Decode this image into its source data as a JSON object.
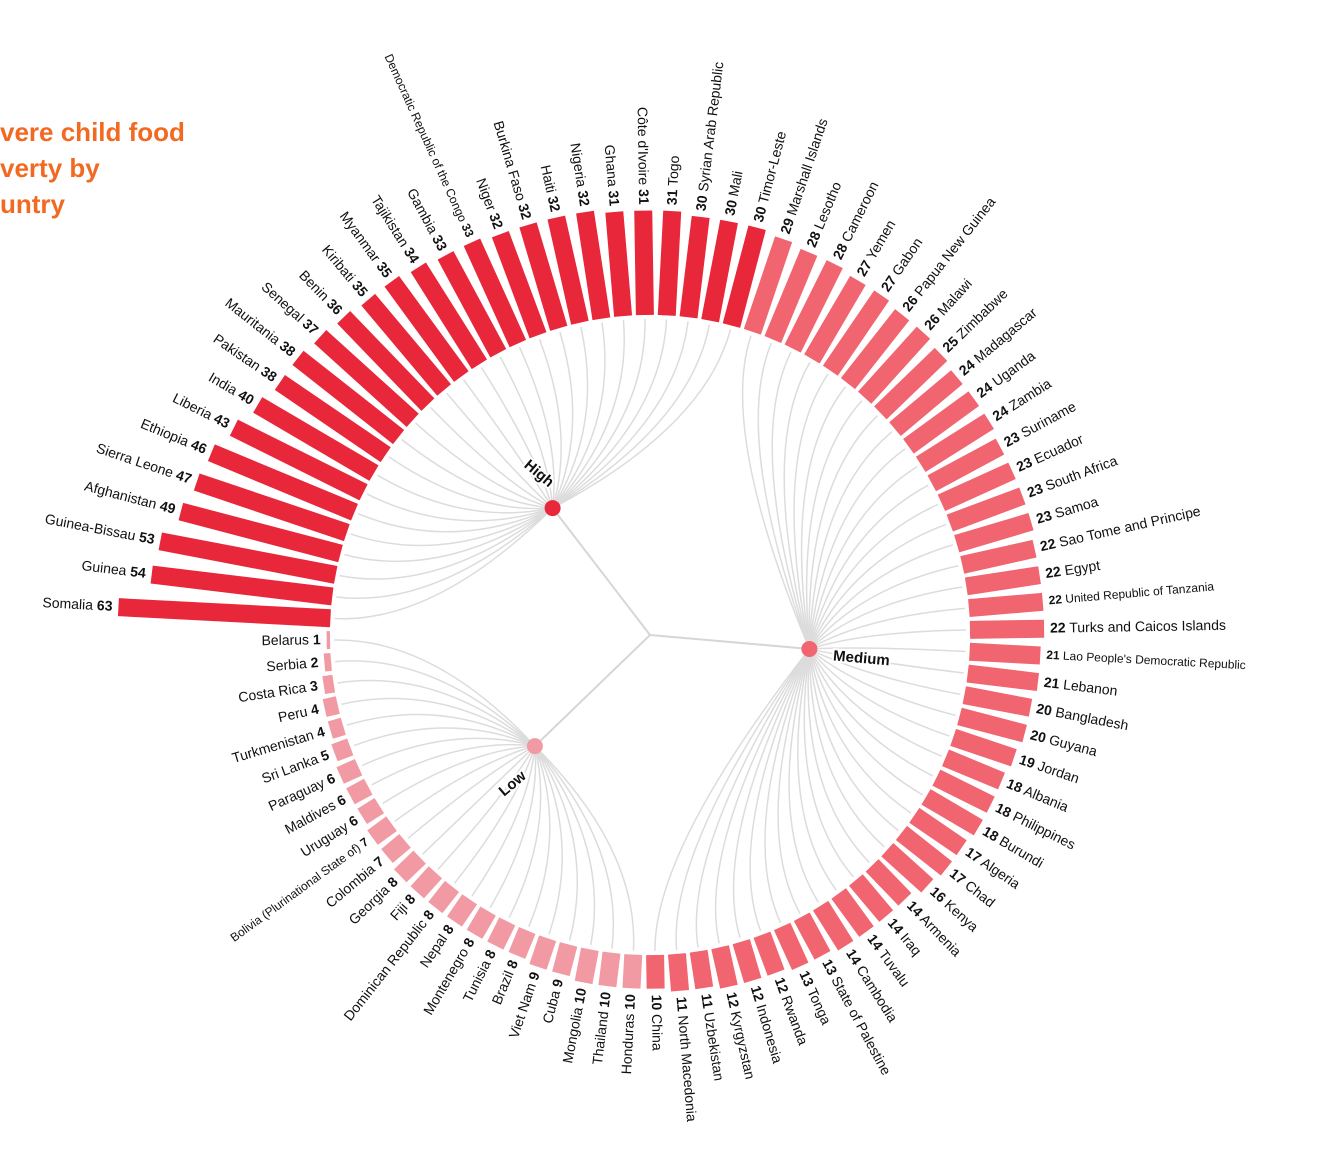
{
  "chart_data": {
    "type": "radial_bar",
    "title": [
      "vere child food",
      "verty by",
      "untry"
    ],
    "series": [
      {
        "name": "High",
        "color": "#e8273a",
        "categories": [
          "Somalia",
          "Guinea",
          "Guinea-Bissau",
          "Afghanistan",
          "Sierra Leone",
          "Ethiopia",
          "Liberia",
          "India",
          "Pakistan",
          "Mauritania",
          "Senegal",
          "Benin",
          "Kiribati",
          "Myanmar",
          "Tajikistan",
          "Gambia",
          "Democratic Republic of the Congo",
          "Niger",
          "Burkina Faso",
          "Haiti",
          "Nigeria",
          "Ghana",
          "Côte d'Ivoire",
          "Togo",
          "Syrian Arab Republic",
          "Mali",
          "Timor-Leste"
        ],
        "values": [
          63,
          54,
          53,
          49,
          47,
          46,
          43,
          40,
          38,
          38,
          37,
          36,
          35,
          35,
          34,
          33,
          33,
          32,
          32,
          32,
          32,
          31,
          31,
          31,
          30,
          30,
          30
        ]
      },
      {
        "name": "Medium",
        "color": "#f0656f",
        "categories": [
          "Marshall Islands",
          "Lesotho",
          "Cameroon",
          "Yemen",
          "Gabon",
          "Papua New Guinea",
          "Malawi",
          "Zimbabwe",
          "Madagascar",
          "Uganda",
          "Zambia",
          "Suriname",
          "Ecuador",
          "South Africa",
          "Samoa",
          "Sao Tome and Principe",
          "Egypt",
          "United Republic of Tanzania",
          "Turks and Caicos Islands",
          "Lao People's Democratic Republic",
          "Lebanon",
          "Bangladesh",
          "Guyana",
          "Jordan",
          "Albania",
          "Philippines",
          "Burundi",
          "Algeria",
          "Chad",
          "Kenya",
          "Armenia",
          "Iraq",
          "Tuvalu",
          "Cambodia",
          "State of Palestine",
          "Tonga",
          "Rwanda",
          "Indonesia",
          "Kyrgyzstan",
          "Uzbekistan",
          "North Macedonia",
          "China"
        ],
        "values": [
          29,
          28,
          28,
          27,
          27,
          26,
          26,
          25,
          24,
          24,
          24,
          23,
          23,
          23,
          23,
          22,
          22,
          22,
          22,
          21,
          21,
          20,
          20,
          19,
          18,
          18,
          18,
          17,
          17,
          16,
          14,
          14,
          14,
          14,
          13,
          13,
          12,
          12,
          12,
          11,
          11,
          10
        ]
      },
      {
        "name": "Low",
        "color": "#f19aa3",
        "categories": [
          "Honduras",
          "Thailand",
          "Mongolia",
          "Cuba",
          "Viet Nam",
          "Brazil",
          "Tunisia",
          "Montenegro",
          "Nepal",
          "Dominican Republic",
          "Fiji",
          "Georgia",
          "Colombia",
          "Bolivia (Plurinational State of)",
          "Uruguay",
          "Maldives",
          "Paraguay",
          "Sri Lanka",
          "Turkmenistan",
          "Peru",
          "Costa Rica",
          "Serbia",
          "Belarus"
        ],
        "values": [
          10,
          10,
          10,
          9,
          9,
          8,
          8,
          8,
          8,
          8,
          8,
          8,
          7,
          7,
          6,
          6,
          6,
          5,
          4,
          4,
          3,
          2,
          1
        ]
      }
    ]
  }
}
